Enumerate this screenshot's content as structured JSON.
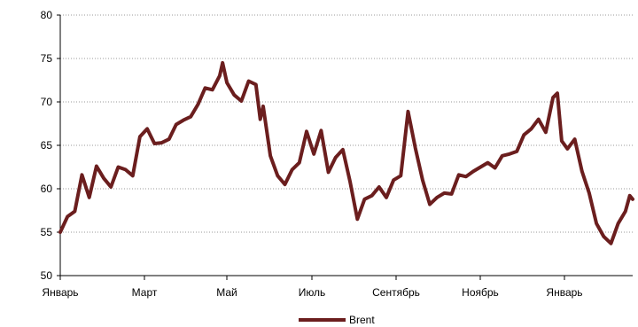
{
  "chart_data": {
    "type": "line",
    "title": "",
    "xlabel": "",
    "ylabel": "",
    "ylim": [
      50,
      80
    ],
    "yticks": [
      50,
      55,
      60,
      65,
      70,
      75,
      80
    ],
    "xticks": [
      "Январь",
      "Март",
      "Май",
      "Июль",
      "Сентябрь",
      "Ноябрь",
      "Январь"
    ],
    "grid": "horizontal dotted",
    "legend": {
      "position": "bottom-center"
    },
    "colors": {
      "series": "#6b1e1e",
      "axis": "#000000",
      "grid": "#9a9a9a"
    },
    "series": [
      {
        "name": "Brent",
        "points": [
          [
            0.0,
            55.0
          ],
          [
            0.5,
            56.8
          ],
          [
            1.0,
            57.4
          ],
          [
            1.5,
            61.6
          ],
          [
            2.0,
            59.0
          ],
          [
            2.5,
            62.6
          ],
          [
            3.0,
            61.2
          ],
          [
            3.5,
            60.2
          ],
          [
            4.0,
            62.5
          ],
          [
            4.5,
            62.2
          ],
          [
            5.0,
            61.5
          ],
          [
            5.5,
            66.0
          ],
          [
            6.0,
            66.9
          ],
          [
            6.5,
            65.2
          ],
          [
            7.0,
            65.3
          ],
          [
            7.5,
            65.7
          ],
          [
            8.0,
            67.4
          ],
          [
            8.5,
            67.9
          ],
          [
            9.0,
            68.3
          ],
          [
            9.5,
            69.7
          ],
          [
            10.0,
            71.6
          ],
          [
            10.5,
            71.4
          ],
          [
            11.0,
            73.0
          ],
          [
            11.2,
            74.5
          ],
          [
            11.5,
            72.2
          ],
          [
            12.0,
            70.8
          ],
          [
            12.5,
            70.1
          ],
          [
            13.0,
            72.4
          ],
          [
            13.5,
            72.0
          ],
          [
            13.8,
            68.0
          ],
          [
            14.0,
            69.5
          ],
          [
            14.5,
            63.8
          ],
          [
            15.0,
            61.5
          ],
          [
            15.5,
            60.5
          ],
          [
            16.0,
            62.2
          ],
          [
            16.5,
            63.0
          ],
          [
            17.0,
            66.6
          ],
          [
            17.5,
            64.0
          ],
          [
            18.0,
            66.7
          ],
          [
            18.5,
            61.9
          ],
          [
            19.0,
            63.6
          ],
          [
            19.5,
            64.5
          ],
          [
            20.0,
            60.8
          ],
          [
            20.5,
            56.5
          ],
          [
            21.0,
            58.8
          ],
          [
            21.5,
            59.2
          ],
          [
            22.0,
            60.2
          ],
          [
            22.5,
            59.0
          ],
          [
            23.0,
            61.0
          ],
          [
            23.5,
            61.5
          ],
          [
            24.0,
            68.9
          ],
          [
            24.5,
            64.7
          ],
          [
            25.0,
            61.0
          ],
          [
            25.5,
            58.2
          ],
          [
            26.0,
            59.0
          ],
          [
            26.5,
            59.5
          ],
          [
            27.0,
            59.4
          ],
          [
            27.5,
            61.6
          ],
          [
            28.0,
            61.4
          ],
          [
            28.5,
            62.0
          ],
          [
            29.0,
            62.5
          ],
          [
            29.5,
            63.0
          ],
          [
            30.0,
            62.4
          ],
          [
            30.5,
            63.8
          ],
          [
            31.0,
            64.0
          ],
          [
            31.5,
            64.3
          ],
          [
            32.0,
            66.2
          ],
          [
            32.5,
            66.9
          ],
          [
            33.0,
            68.0
          ],
          [
            33.5,
            66.5
          ],
          [
            34.0,
            70.5
          ],
          [
            34.3,
            71.0
          ],
          [
            34.6,
            65.5
          ],
          [
            35.0,
            64.6
          ],
          [
            35.5,
            65.7
          ],
          [
            36.0,
            62.0
          ],
          [
            36.5,
            59.5
          ],
          [
            37.0,
            56.0
          ],
          [
            37.5,
            54.5
          ],
          [
            38.0,
            53.7
          ],
          [
            38.5,
            56.0
          ],
          [
            39.0,
            57.4
          ],
          [
            39.3,
            59.2
          ],
          [
            39.5,
            58.8
          ]
        ]
      }
    ]
  }
}
